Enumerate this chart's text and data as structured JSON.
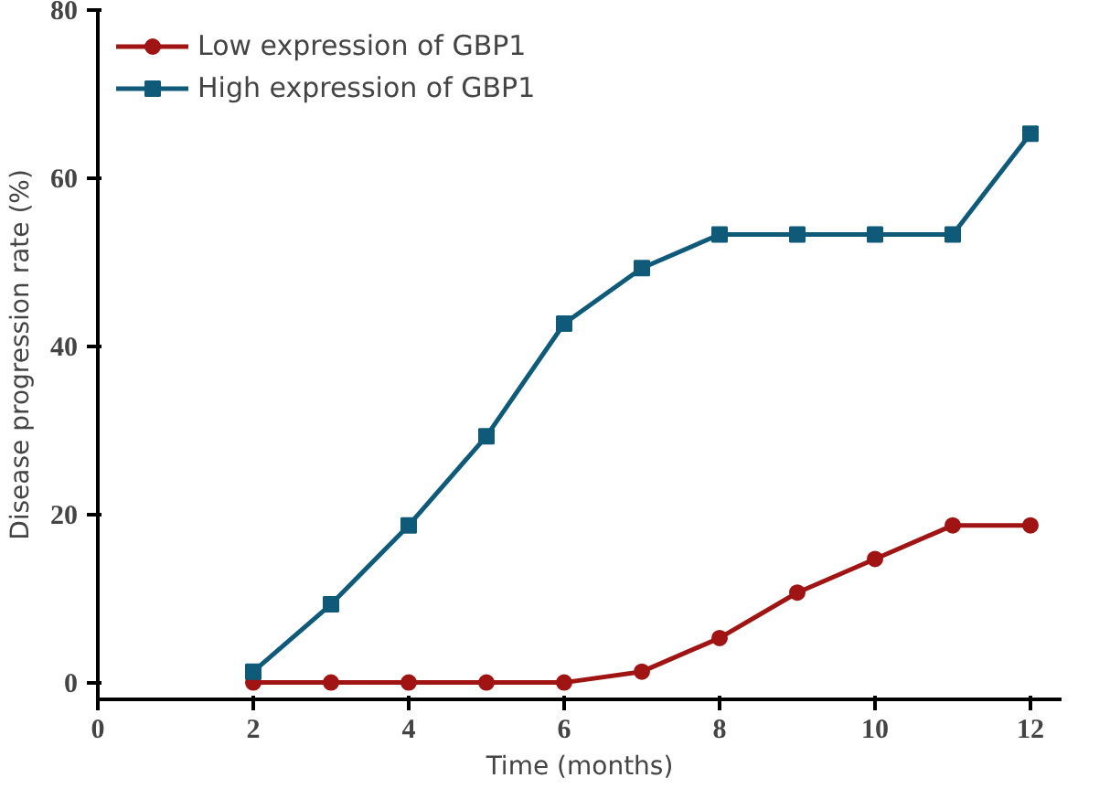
{
  "chart_data": {
    "type": "line",
    "xlabel": "Time (months)",
    "ylabel": "Disease progression rate (%)",
    "x": [
      2,
      3,
      4,
      5,
      6,
      7,
      8,
      9,
      10,
      11,
      12
    ],
    "series": [
      {
        "name": "Low expression of GBP1",
        "color": "#a01414",
        "marker": "circle",
        "values": [
          0,
          0,
          0,
          0,
          0,
          1.3,
          5.3,
          10.7,
          14.7,
          18.7,
          18.7
        ]
      },
      {
        "name": "High expression of GBP1",
        "color": "#0e5a78",
        "marker": "square",
        "values": [
          1.3,
          9.3,
          18.7,
          29.3,
          42.7,
          49.3,
          53.3,
          53.3,
          53.3,
          53.3,
          65.3
        ]
      }
    ],
    "xlim": [
      0,
      12.4
    ],
    "ylim": [
      -2,
      80
    ],
    "xticks": [
      0,
      2,
      4,
      6,
      8,
      10,
      12
    ],
    "yticks": [
      0,
      20,
      40,
      60,
      80
    ],
    "grid": false,
    "legend": "top left",
    "line_style": "solid"
  }
}
